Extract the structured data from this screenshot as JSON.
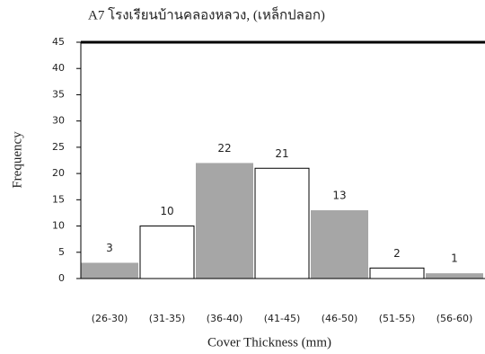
{
  "chart_data": {
    "type": "bar",
    "title": "A7 โรงเรียนบ้านคลองหลวง, (เหล็กปลอก)",
    "x_label": "Cover Thickness (mm)",
    "y_label": "Frequency",
    "categories": [
      "(26-30)",
      "(31-35)",
      "(36-40)",
      "(41-45)",
      "(46-50)",
      "(51-55)",
      "(56-60)"
    ],
    "values": [
      3,
      10,
      22,
      21,
      13,
      2,
      1
    ],
    "colors": [
      "#a6a6a6",
      "#ffffff",
      "#a6a6a6",
      "#ffffff",
      "#a6a6a6",
      "#ffffff",
      "#a6a6a6"
    ],
    "ylim": [
      0,
      45
    ],
    "yticks": [
      0,
      5,
      10,
      15,
      20,
      25,
      30,
      35,
      40,
      45
    ]
  }
}
